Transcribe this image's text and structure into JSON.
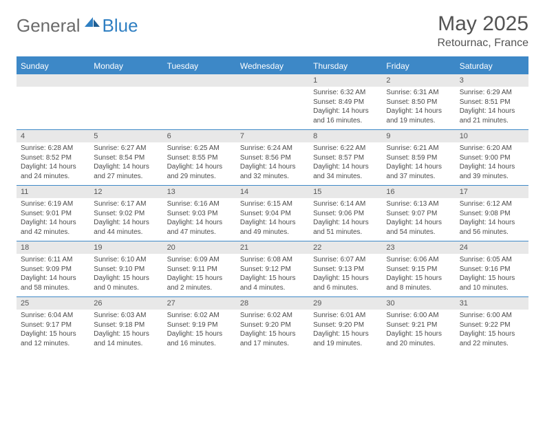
{
  "brand": {
    "part1": "General",
    "part2": "Blue"
  },
  "title": "May 2025",
  "location": "Retournac, France",
  "dow": [
    "Sunday",
    "Monday",
    "Tuesday",
    "Wednesday",
    "Thursday",
    "Friday",
    "Saturday"
  ],
  "colors": {
    "header_bar": "#3d88c7",
    "daynum_bg": "#e8e8e8",
    "text": "#404040",
    "brand_gray": "#6b6b6b",
    "brand_blue": "#2f7fc2"
  },
  "weeks": [
    [
      {
        "n": "",
        "sr": "",
        "ss": "",
        "dl": ""
      },
      {
        "n": "",
        "sr": "",
        "ss": "",
        "dl": ""
      },
      {
        "n": "",
        "sr": "",
        "ss": "",
        "dl": ""
      },
      {
        "n": "",
        "sr": "",
        "ss": "",
        "dl": ""
      },
      {
        "n": "1",
        "sr": "Sunrise: 6:32 AM",
        "ss": "Sunset: 8:49 PM",
        "dl": "Daylight: 14 hours and 16 minutes."
      },
      {
        "n": "2",
        "sr": "Sunrise: 6:31 AM",
        "ss": "Sunset: 8:50 PM",
        "dl": "Daylight: 14 hours and 19 minutes."
      },
      {
        "n": "3",
        "sr": "Sunrise: 6:29 AM",
        "ss": "Sunset: 8:51 PM",
        "dl": "Daylight: 14 hours and 21 minutes."
      }
    ],
    [
      {
        "n": "4",
        "sr": "Sunrise: 6:28 AM",
        "ss": "Sunset: 8:52 PM",
        "dl": "Daylight: 14 hours and 24 minutes."
      },
      {
        "n": "5",
        "sr": "Sunrise: 6:27 AM",
        "ss": "Sunset: 8:54 PM",
        "dl": "Daylight: 14 hours and 27 minutes."
      },
      {
        "n": "6",
        "sr": "Sunrise: 6:25 AM",
        "ss": "Sunset: 8:55 PM",
        "dl": "Daylight: 14 hours and 29 minutes."
      },
      {
        "n": "7",
        "sr": "Sunrise: 6:24 AM",
        "ss": "Sunset: 8:56 PM",
        "dl": "Daylight: 14 hours and 32 minutes."
      },
      {
        "n": "8",
        "sr": "Sunrise: 6:22 AM",
        "ss": "Sunset: 8:57 PM",
        "dl": "Daylight: 14 hours and 34 minutes."
      },
      {
        "n": "9",
        "sr": "Sunrise: 6:21 AM",
        "ss": "Sunset: 8:59 PM",
        "dl": "Daylight: 14 hours and 37 minutes."
      },
      {
        "n": "10",
        "sr": "Sunrise: 6:20 AM",
        "ss": "Sunset: 9:00 PM",
        "dl": "Daylight: 14 hours and 39 minutes."
      }
    ],
    [
      {
        "n": "11",
        "sr": "Sunrise: 6:19 AM",
        "ss": "Sunset: 9:01 PM",
        "dl": "Daylight: 14 hours and 42 minutes."
      },
      {
        "n": "12",
        "sr": "Sunrise: 6:17 AM",
        "ss": "Sunset: 9:02 PM",
        "dl": "Daylight: 14 hours and 44 minutes."
      },
      {
        "n": "13",
        "sr": "Sunrise: 6:16 AM",
        "ss": "Sunset: 9:03 PM",
        "dl": "Daylight: 14 hours and 47 minutes."
      },
      {
        "n": "14",
        "sr": "Sunrise: 6:15 AM",
        "ss": "Sunset: 9:04 PM",
        "dl": "Daylight: 14 hours and 49 minutes."
      },
      {
        "n": "15",
        "sr": "Sunrise: 6:14 AM",
        "ss": "Sunset: 9:06 PM",
        "dl": "Daylight: 14 hours and 51 minutes."
      },
      {
        "n": "16",
        "sr": "Sunrise: 6:13 AM",
        "ss": "Sunset: 9:07 PM",
        "dl": "Daylight: 14 hours and 54 minutes."
      },
      {
        "n": "17",
        "sr": "Sunrise: 6:12 AM",
        "ss": "Sunset: 9:08 PM",
        "dl": "Daylight: 14 hours and 56 minutes."
      }
    ],
    [
      {
        "n": "18",
        "sr": "Sunrise: 6:11 AM",
        "ss": "Sunset: 9:09 PM",
        "dl": "Daylight: 14 hours and 58 minutes."
      },
      {
        "n": "19",
        "sr": "Sunrise: 6:10 AM",
        "ss": "Sunset: 9:10 PM",
        "dl": "Daylight: 15 hours and 0 minutes."
      },
      {
        "n": "20",
        "sr": "Sunrise: 6:09 AM",
        "ss": "Sunset: 9:11 PM",
        "dl": "Daylight: 15 hours and 2 minutes."
      },
      {
        "n": "21",
        "sr": "Sunrise: 6:08 AM",
        "ss": "Sunset: 9:12 PM",
        "dl": "Daylight: 15 hours and 4 minutes."
      },
      {
        "n": "22",
        "sr": "Sunrise: 6:07 AM",
        "ss": "Sunset: 9:13 PM",
        "dl": "Daylight: 15 hours and 6 minutes."
      },
      {
        "n": "23",
        "sr": "Sunrise: 6:06 AM",
        "ss": "Sunset: 9:15 PM",
        "dl": "Daylight: 15 hours and 8 minutes."
      },
      {
        "n": "24",
        "sr": "Sunrise: 6:05 AM",
        "ss": "Sunset: 9:16 PM",
        "dl": "Daylight: 15 hours and 10 minutes."
      }
    ],
    [
      {
        "n": "25",
        "sr": "Sunrise: 6:04 AM",
        "ss": "Sunset: 9:17 PM",
        "dl": "Daylight: 15 hours and 12 minutes."
      },
      {
        "n": "26",
        "sr": "Sunrise: 6:03 AM",
        "ss": "Sunset: 9:18 PM",
        "dl": "Daylight: 15 hours and 14 minutes."
      },
      {
        "n": "27",
        "sr": "Sunrise: 6:02 AM",
        "ss": "Sunset: 9:19 PM",
        "dl": "Daylight: 15 hours and 16 minutes."
      },
      {
        "n": "28",
        "sr": "Sunrise: 6:02 AM",
        "ss": "Sunset: 9:20 PM",
        "dl": "Daylight: 15 hours and 17 minutes."
      },
      {
        "n": "29",
        "sr": "Sunrise: 6:01 AM",
        "ss": "Sunset: 9:20 PM",
        "dl": "Daylight: 15 hours and 19 minutes."
      },
      {
        "n": "30",
        "sr": "Sunrise: 6:00 AM",
        "ss": "Sunset: 9:21 PM",
        "dl": "Daylight: 15 hours and 20 minutes."
      },
      {
        "n": "31",
        "sr": "Sunrise: 6:00 AM",
        "ss": "Sunset: 9:22 PM",
        "dl": "Daylight: 15 hours and 22 minutes."
      }
    ]
  ]
}
